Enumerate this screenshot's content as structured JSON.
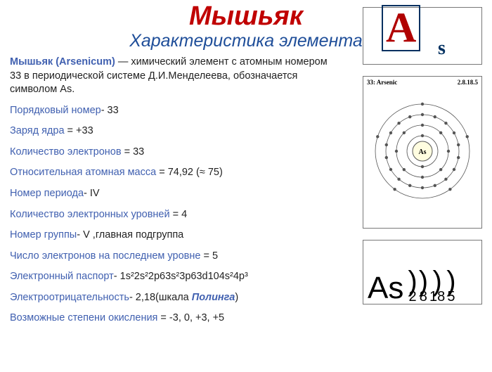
{
  "title": "Мышьяк",
  "subtitle": "Характеристика элемента",
  "intro": {
    "lead": "Мышьяк (Arsenicum)",
    "rest": " — химический элемент с атомным номером 33 в периодической системе Д.И.Менделеева, обозначается символом As."
  },
  "properties": [
    {
      "label": "Порядковый номер",
      "sep": "- ",
      "value": "33"
    },
    {
      "label": "Заряд ядра",
      "sep": " = ",
      "value": "+33"
    },
    {
      "label": "Количество электронов",
      "sep": " = ",
      "value": "33"
    },
    {
      "label": "Относительная атомная масса",
      "sep": " = ",
      "value": "74,92 (≈ 75)"
    },
    {
      "label": "Номер периода",
      "sep": "- ",
      "value": "IV"
    },
    {
      "label": "Количество электронных уровней",
      "sep": " = ",
      "value": "4"
    },
    {
      "label": "Номер группы",
      "sep": "- ",
      "value": "V ,главная подгруппа"
    },
    {
      "label": "Число электронов на последнем уровне",
      "sep": " = ",
      "value": "5"
    },
    {
      "label": "Электронный паспорт",
      "sep": "- ",
      "value": "1s²2s²2p63s²3p63d104s²4p³"
    },
    {
      "label": "Электроотрицательность",
      "sep": "- ",
      "value_pre": "2,18(шкала ",
      "value_bold": "Полинга",
      "value_post": ")"
    },
    {
      "label": "Возможные степени окисления",
      "sep": " =  ",
      "value": "-3, 0, +3, +5"
    }
  ],
  "atom": {
    "header_left": "33: Arsenic",
    "header_right": "2.8.18.5",
    "center_label": "As",
    "shells": [
      {
        "r": 22,
        "count": 2
      },
      {
        "r": 37,
        "count": 8
      },
      {
        "r": 52,
        "count": 18
      },
      {
        "r": 67,
        "count": 5
      }
    ],
    "colors": {
      "ring": "#555555",
      "electron": "#555555",
      "center_fill": "#fffde0",
      "center_stroke": "#555555"
    }
  },
  "shell_diagram": {
    "symbol": "As",
    "counts": [
      2,
      8,
      18,
      5
    ]
  },
  "logo": {
    "a": "A",
    "s": "s"
  }
}
